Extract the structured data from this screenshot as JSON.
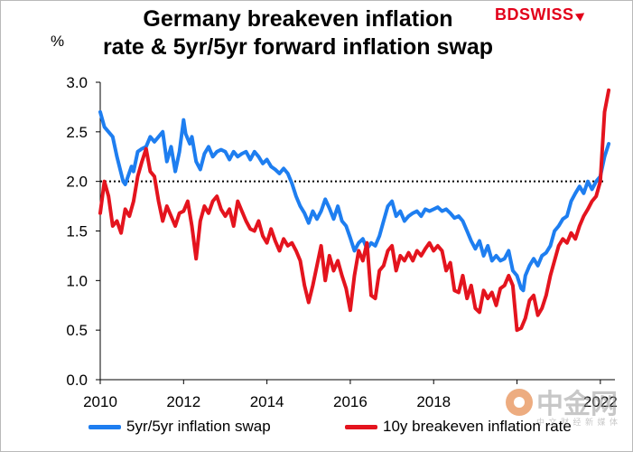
{
  "title_line1": "Germany breakeven inflation",
  "title_line2": "rate & 5yr/5yr forward inflation swap",
  "brand": "BDSWISS",
  "y_unit": "%",
  "colors": {
    "swap": "#1e7ef0",
    "breakeven": "#e4141e",
    "reference": "#000000"
  },
  "legend": {
    "swap_label": "5yr/5yr inflation swap",
    "breakeven_label": "10y breakeven inflation rate"
  },
  "watermark": {
    "icon": "gold-coin-logo-icon",
    "text": "中金网",
    "sub": "中 文 财 经 新 媒 体"
  },
  "chart_data": {
    "type": "line",
    "title": "Germany breakeven inflation rate & 5yr/5yr forward inflation swap",
    "ylabel": "%",
    "xlim": [
      2010,
      2022.35
    ],
    "ylim": [
      0,
      3
    ],
    "x_ticks": [
      "2010",
      "2012",
      "2014",
      "2016",
      "2018",
      "",
      "2022"
    ],
    "y_ticks": [
      "0.0",
      "0.5",
      "1.0",
      "1.5",
      "2.0",
      "2.5",
      "3.0"
    ],
    "reference_line": {
      "y": 2.0,
      "style": "dotted"
    },
    "legend_position": "bottom",
    "series": [
      {
        "name": "5yr/5yr inflation swap",
        "x": [
          2010.0,
          2010.1,
          2010.3,
          2010.4,
          2010.55,
          2010.6,
          2010.75,
          2010.8,
          2010.9,
          2011.0,
          2011.1,
          2011.2,
          2011.3,
          2011.4,
          2011.5,
          2011.6,
          2011.7,
          2011.8,
          2011.9,
          2012.0,
          2012.05,
          2012.15,
          2012.2,
          2012.3,
          2012.4,
          2012.5,
          2012.6,
          2012.7,
          2012.8,
          2012.9,
          2013.0,
          2013.1,
          2013.2,
          2013.3,
          2013.4,
          2013.5,
          2013.6,
          2013.7,
          2013.8,
          2013.9,
          2014.0,
          2014.1,
          2014.2,
          2014.3,
          2014.4,
          2014.5,
          2014.6,
          2014.7,
          2014.8,
          2014.9,
          2015.0,
          2015.1,
          2015.2,
          2015.3,
          2015.4,
          2015.5,
          2015.6,
          2015.7,
          2015.8,
          2015.9,
          2016.0,
          2016.1,
          2016.2,
          2016.3,
          2016.4,
          2016.5,
          2016.6,
          2016.7,
          2016.8,
          2016.9,
          2017.0,
          2017.1,
          2017.2,
          2017.3,
          2017.4,
          2017.5,
          2017.6,
          2017.7,
          2017.8,
          2017.9,
          2018.0,
          2018.1,
          2018.2,
          2018.3,
          2018.4,
          2018.5,
          2018.6,
          2018.7,
          2018.8,
          2018.9,
          2019.0,
          2019.1,
          2019.2,
          2019.3,
          2019.4,
          2019.5,
          2019.6,
          2019.7,
          2019.8,
          2019.9,
          2020.0,
          2020.1,
          2020.15,
          2020.2,
          2020.3,
          2020.4,
          2020.5,
          2020.6,
          2020.7,
          2020.8,
          2020.9,
          2021.0,
          2021.1,
          2021.2,
          2021.3,
          2021.4,
          2021.5,
          2021.6,
          2021.7,
          2021.8,
          2021.9,
          2022.0,
          2022.1,
          2022.2
        ],
        "values": [
          2.7,
          2.55,
          2.45,
          2.25,
          2.0,
          1.97,
          2.15,
          2.1,
          2.3,
          2.33,
          2.35,
          2.45,
          2.4,
          2.45,
          2.5,
          2.2,
          2.35,
          2.1,
          2.3,
          2.62,
          2.48,
          2.38,
          2.45,
          2.2,
          2.12,
          2.28,
          2.35,
          2.25,
          2.3,
          2.32,
          2.3,
          2.22,
          2.3,
          2.25,
          2.28,
          2.3,
          2.22,
          2.3,
          2.25,
          2.18,
          2.22,
          2.15,
          2.12,
          2.08,
          2.13,
          2.08,
          1.98,
          1.85,
          1.75,
          1.68,
          1.58,
          1.7,
          1.62,
          1.7,
          1.82,
          1.73,
          1.62,
          1.75,
          1.6,
          1.55,
          1.43,
          1.3,
          1.38,
          1.42,
          1.32,
          1.38,
          1.35,
          1.45,
          1.6,
          1.75,
          1.8,
          1.65,
          1.7,
          1.6,
          1.65,
          1.68,
          1.7,
          1.65,
          1.72,
          1.7,
          1.72,
          1.74,
          1.7,
          1.72,
          1.68,
          1.63,
          1.65,
          1.6,
          1.5,
          1.4,
          1.32,
          1.4,
          1.25,
          1.35,
          1.2,
          1.25,
          1.2,
          1.22,
          1.3,
          1.1,
          1.05,
          0.92,
          0.9,
          1.05,
          1.15,
          1.22,
          1.15,
          1.25,
          1.28,
          1.35,
          1.5,
          1.55,
          1.62,
          1.65,
          1.8,
          1.88,
          1.95,
          1.88,
          2.0,
          1.92,
          2.0,
          2.05,
          2.25,
          2.38
        ]
      },
      {
        "name": "10y breakeven inflation rate",
        "x": [
          2010.0,
          2010.1,
          2010.2,
          2010.3,
          2010.4,
          2010.5,
          2010.6,
          2010.7,
          2010.8,
          2010.9,
          2011.0,
          2011.1,
          2011.2,
          2011.3,
          2011.4,
          2011.5,
          2011.6,
          2011.7,
          2011.8,
          2011.9,
          2012.0,
          2012.1,
          2012.2,
          2012.3,
          2012.4,
          2012.5,
          2012.6,
          2012.7,
          2012.8,
          2012.9,
          2013.0,
          2013.1,
          2013.2,
          2013.3,
          2013.4,
          2013.5,
          2013.6,
          2013.7,
          2013.8,
          2013.9,
          2014.0,
          2014.1,
          2014.2,
          2014.3,
          2014.4,
          2014.5,
          2014.6,
          2014.7,
          2014.8,
          2014.9,
          2015.0,
          2015.1,
          2015.2,
          2015.3,
          2015.4,
          2015.5,
          2015.6,
          2015.7,
          2015.8,
          2015.9,
          2016.0,
          2016.1,
          2016.2,
          2016.3,
          2016.4,
          2016.5,
          2016.6,
          2016.7,
          2016.8,
          2016.9,
          2017.0,
          2017.1,
          2017.2,
          2017.3,
          2017.4,
          2017.5,
          2017.6,
          2017.7,
          2017.8,
          2017.9,
          2018.0,
          2018.1,
          2018.2,
          2018.3,
          2018.4,
          2018.5,
          2018.6,
          2018.7,
          2018.8,
          2018.9,
          2019.0,
          2019.1,
          2019.2,
          2019.3,
          2019.4,
          2019.5,
          2019.6,
          2019.7,
          2019.8,
          2019.9,
          2020.0,
          2020.1,
          2020.2,
          2020.3,
          2020.4,
          2020.5,
          2020.6,
          2020.7,
          2020.8,
          2020.9,
          2021.0,
          2021.1,
          2021.2,
          2021.3,
          2021.4,
          2021.5,
          2021.6,
          2021.7,
          2021.8,
          2021.9,
          2022.0,
          2022.1,
          2022.2
        ],
        "values": [
          1.68,
          2.0,
          1.85,
          1.55,
          1.6,
          1.48,
          1.72,
          1.65,
          1.8,
          2.05,
          2.2,
          2.33,
          2.1,
          2.05,
          1.8,
          1.6,
          1.75,
          1.65,
          1.55,
          1.68,
          1.7,
          1.8,
          1.55,
          1.22,
          1.6,
          1.75,
          1.68,
          1.8,
          1.85,
          1.72,
          1.65,
          1.72,
          1.55,
          1.8,
          1.7,
          1.6,
          1.52,
          1.5,
          1.6,
          1.45,
          1.38,
          1.52,
          1.4,
          1.3,
          1.42,
          1.35,
          1.38,
          1.3,
          1.2,
          0.95,
          0.78,
          0.95,
          1.15,
          1.35,
          1.0,
          1.25,
          1.1,
          1.2,
          1.05,
          0.92,
          0.7,
          1.05,
          1.3,
          1.2,
          1.38,
          0.85,
          0.82,
          1.1,
          1.15,
          1.3,
          1.35,
          1.1,
          1.25,
          1.2,
          1.28,
          1.2,
          1.3,
          1.25,
          1.32,
          1.38,
          1.3,
          1.35,
          1.3,
          1.1,
          1.18,
          0.9,
          0.88,
          1.05,
          0.82,
          0.95,
          0.72,
          0.68,
          0.9,
          0.82,
          0.88,
          0.75,
          0.92,
          0.95,
          1.05,
          0.95,
          0.5,
          0.52,
          0.62,
          0.8,
          0.85,
          0.65,
          0.72,
          0.85,
          1.05,
          1.2,
          1.35,
          1.42,
          1.38,
          1.48,
          1.42,
          1.55,
          1.65,
          1.72,
          1.8,
          1.85,
          2.0,
          2.7,
          2.92
        ]
      }
    ]
  }
}
